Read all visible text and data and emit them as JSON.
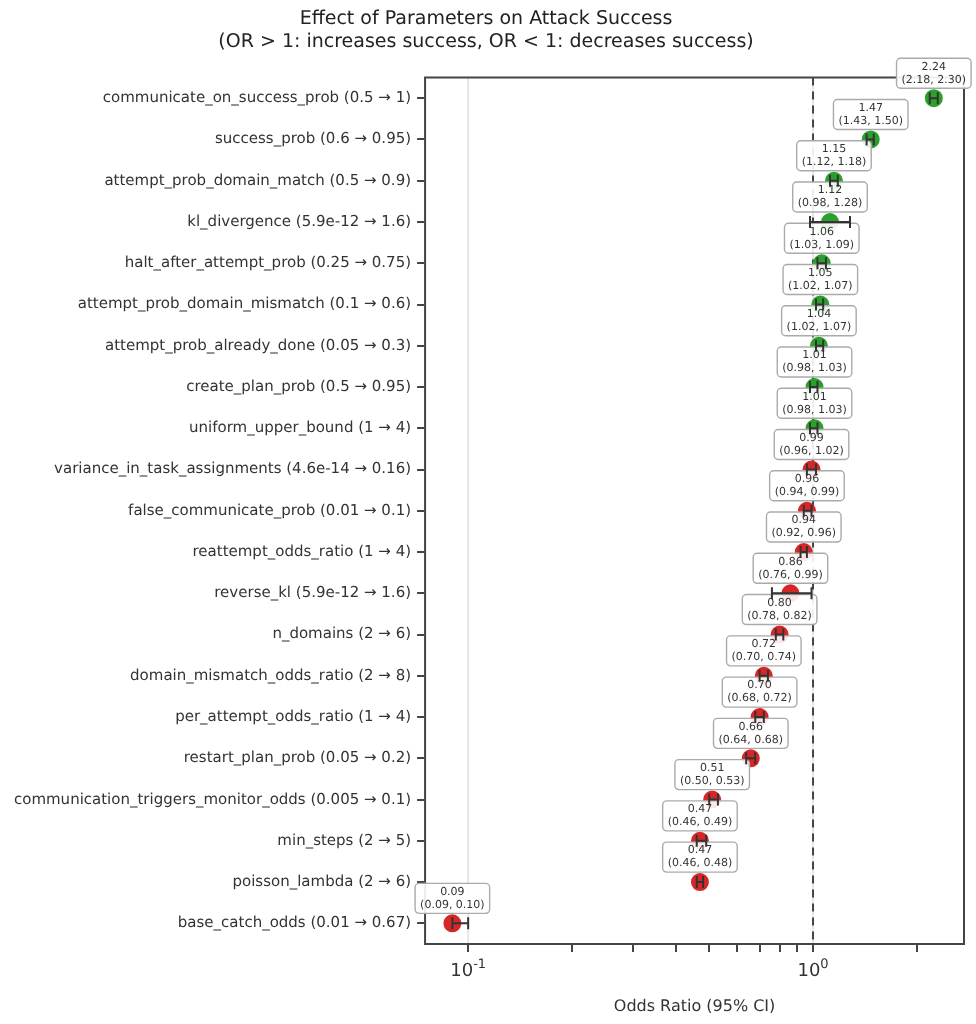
{
  "chart_data": {
    "type": "scatter",
    "orientation": "horizontal",
    "title": "Effect of Parameters on Attack Success",
    "subtitle": "(OR > 1: increases success, OR < 1: decreases success)",
    "xlabel": "Odds Ratio (95% CI)",
    "categories": [
      "communicate_on_success_prob (0.5 → 1)",
      "success_prob (0.6 → 0.95)",
      "attempt_prob_domain_match (0.5 → 0.9)",
      "kl_divergence (5.9e-12 → 1.6)",
      "halt_after_attempt_prob (0.25 → 0.75)",
      "attempt_prob_domain_mismatch (0.1 → 0.6)",
      "attempt_prob_already_done (0.05 → 0.3)",
      "create_plan_prob (0.5 → 0.95)",
      "uniform_upper_bound (1 → 4)",
      "variance_in_task_assignments (4.6e-14 → 0.16)",
      "false_communicate_prob (0.01 → 0.1)",
      "reattempt_odds_ratio (1 → 4)",
      "reverse_kl (5.9e-12 → 1.6)",
      "n_domains (2 → 6)",
      "domain_mismatch_odds_ratio (2 → 8)",
      "per_attempt_odds_ratio (1 → 4)",
      "restart_plan_prob (0.05 → 0.2)",
      "communication_triggers_monitor_odds (0.005 → 0.1)",
      "min_steps (2 → 5)",
      "poisson_lambda (2 → 6)",
      "base_catch_odds (0.01 → 0.67)"
    ],
    "values": [
      2.24,
      1.47,
      1.15,
      1.12,
      1.06,
      1.05,
      1.04,
      1.01,
      1.01,
      0.99,
      0.96,
      0.94,
      0.86,
      0.8,
      0.72,
      0.7,
      0.66,
      0.51,
      0.47,
      0.47,
      0.09
    ],
    "errors": [
      [
        2.18,
        2.3
      ],
      [
        1.43,
        1.5
      ],
      [
        1.12,
        1.18
      ],
      [
        0.98,
        1.28
      ],
      [
        1.03,
        1.09
      ],
      [
        1.02,
        1.07
      ],
      [
        1.02,
        1.07
      ],
      [
        0.98,
        1.03
      ],
      [
        0.98,
        1.03
      ],
      [
        0.96,
        1.02
      ],
      [
        0.94,
        0.99
      ],
      [
        0.92,
        0.96
      ],
      [
        0.76,
        0.99
      ],
      [
        0.78,
        0.82
      ],
      [
        0.7,
        0.74
      ],
      [
        0.68,
        0.72
      ],
      [
        0.64,
        0.68
      ],
      [
        0.5,
        0.53
      ],
      [
        0.46,
        0.49
      ],
      [
        0.46,
        0.48
      ],
      [
        0.09,
        0.1
      ]
    ],
    "value_labels": [
      "2.24\n(2.18, 2.30)",
      "1.47\n(1.43, 1.50)",
      "1.15\n(1.12, 1.18)",
      "1.12\n(0.98, 1.28)",
      "1.06\n(1.03, 1.09)",
      "1.05\n(1.02, 1.07)",
      "1.04\n(1.02, 1.07)",
      "1.01\n(0.98, 1.03)",
      "1.01\n(0.98, 1.03)",
      "0.99\n(0.96, 1.02)",
      "0.96\n(0.94, 0.99)",
      "0.94\n(0.92, 0.96)",
      "0.86\n(0.76, 0.99)",
      "0.80\n(0.78, 0.82)",
      "0.72\n(0.70, 0.74)",
      "0.70\n(0.68, 0.72)",
      "0.66\n(0.64, 0.68)",
      "0.51\n(0.50, 0.53)",
      "0.47\n(0.46, 0.49)",
      "0.47\n(0.46, 0.48)",
      "0.09\n(0.09, 0.10)"
    ],
    "colors": [
      "#2ca02c",
      "#2ca02c",
      "#2ca02c",
      "#2ca02c",
      "#2ca02c",
      "#2ca02c",
      "#2ca02c",
      "#2ca02c",
      "#2ca02c",
      "#d62728",
      "#d62728",
      "#d62728",
      "#d62728",
      "#d62728",
      "#d62728",
      "#d62728",
      "#d62728",
      "#d62728",
      "#d62728",
      "#d62728",
      "#d62728"
    ],
    "log": "x",
    "xlim": [
      0.075,
      2.74
    ],
    "xticks": [
      {
        "value": 0.1,
        "label": "10$^{-1}$"
      },
      {
        "value": 0.2,
        "label": null
      },
      {
        "value": 0.3,
        "label": null
      },
      {
        "value": 0.4,
        "label": null
      },
      {
        "value": 0.5,
        "label": null
      },
      {
        "value": 0.6,
        "label": null
      },
      {
        "value": 0.7,
        "label": null
      },
      {
        "value": 0.8,
        "label": null
      },
      {
        "value": 0.9,
        "label": null
      },
      {
        "value": 1,
        "label": "10$^{0}$"
      },
      {
        "value": 2,
        "label": null
      }
    ],
    "grid": "x",
    "marker": "circle",
    "legend": false,
    "ref_lines": [
      {
        "axis": "x",
        "value": 1,
        "label": null,
        "color": "#444444",
        "line_style": "dashed"
      }
    ]
  }
}
